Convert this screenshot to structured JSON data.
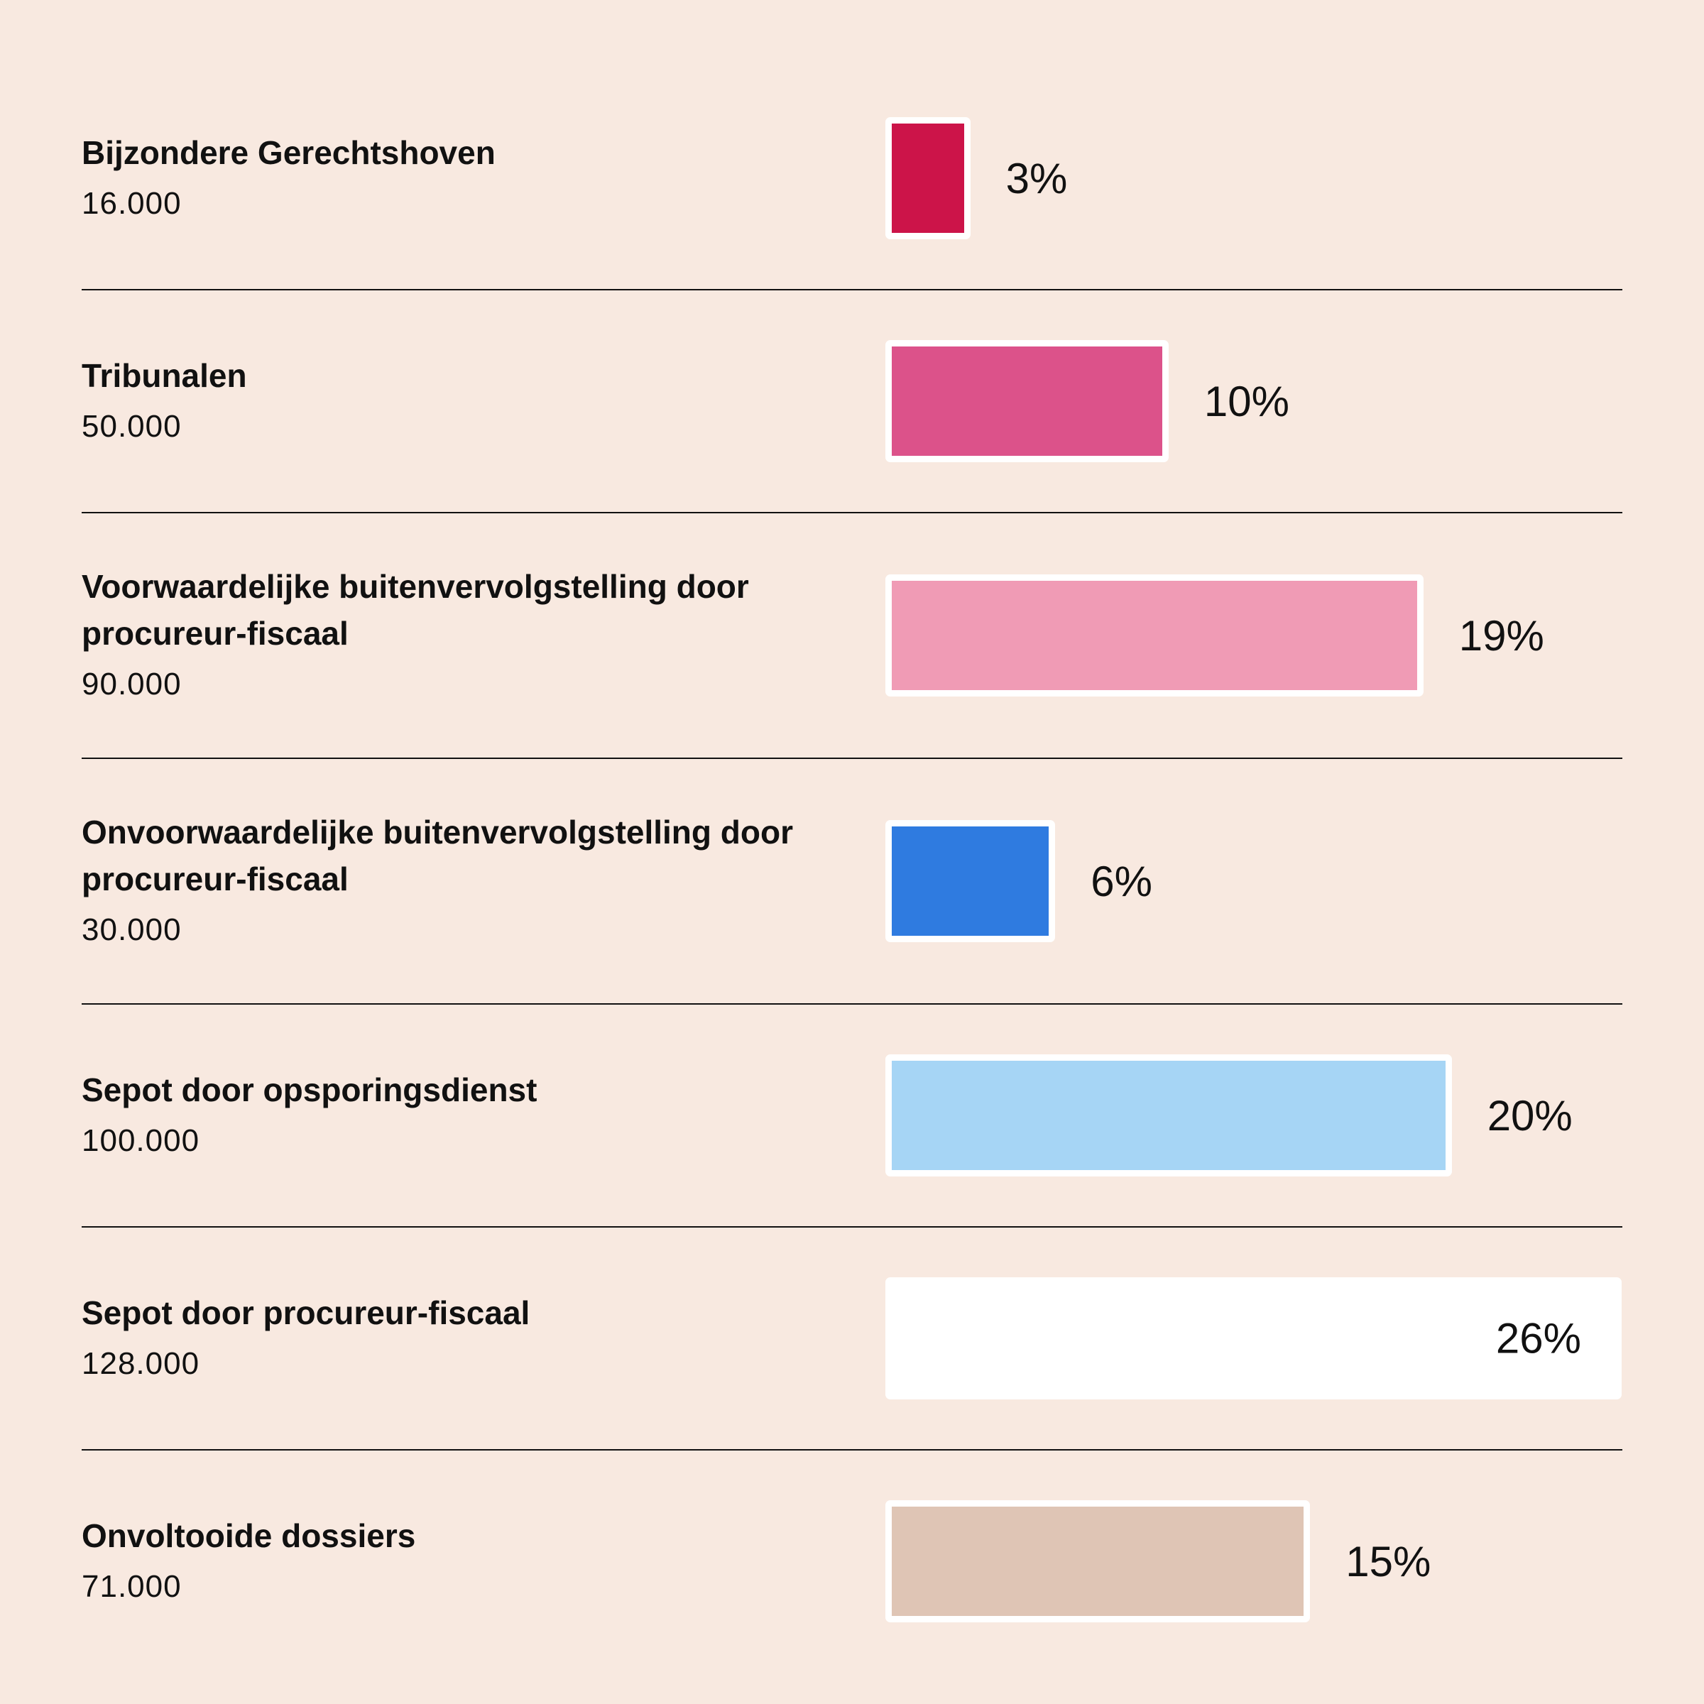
{
  "chart_data": {
    "type": "bar",
    "categories": [
      "Bijzondere Gerechtshoven",
      "Tribunalen",
      "Voorwaardelijke buitenvervolgstelling door procureur-fiscaal",
      "Onvoorwaardelijke buitenvervolgstelling door procureur-fiscaal",
      "Sepot door opsporingsdienst",
      "Sepot door procureur-fiscaal",
      "Onvoltooide dossiers"
    ],
    "counts": [
      "16.000",
      "50.000",
      "90.000",
      "30.000",
      "100.000",
      "128.000",
      "71.000"
    ],
    "values": [
      3,
      10,
      19,
      6,
      20,
      26,
      15
    ],
    "value_labels": [
      "3%",
      "10%",
      "19%",
      "6%",
      "20%",
      "26%",
      "15%"
    ],
    "colors": [
      "#cc1449",
      "#dc528a",
      "#f09bb5",
      "#2f7be0",
      "#a6d5f5",
      "#ffffff",
      "#dfc5b5"
    ]
  }
}
